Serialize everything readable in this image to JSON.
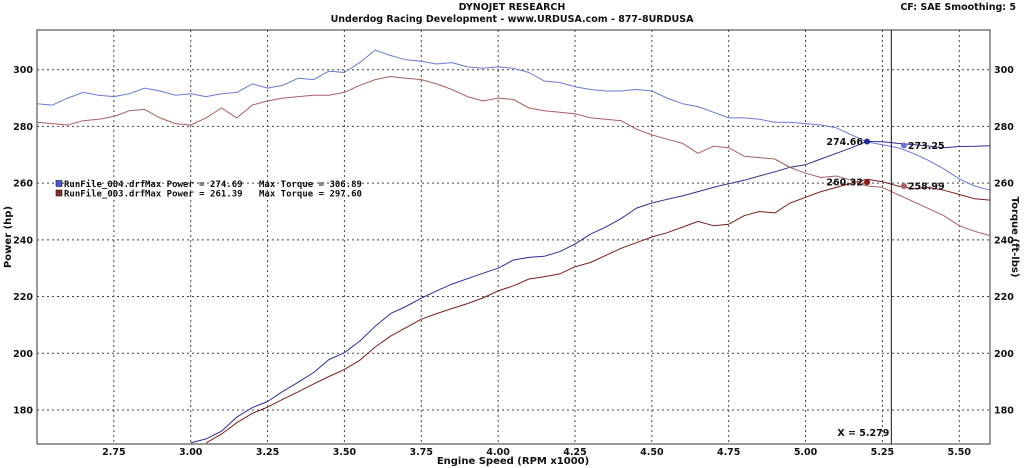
{
  "header": {
    "title": "DYNOJET RESEARCH",
    "subtitle": "Underdog Racing Development - www.URDUSA.com - 877-8URDUSA",
    "settings": "CF: SAE  Smoothing: 5"
  },
  "chart_data": {
    "type": "line",
    "xlabel": "Engine Speed (RPM x1000)",
    "ylabel": "Power (hp)",
    "y2label": "Torque (ft-lbs)",
    "xlim": [
      2.5,
      5.6
    ],
    "ylim": [
      168,
      314
    ],
    "x_ticks": [
      "2.75",
      "3.00",
      "3.25",
      "3.50",
      "3.75",
      "4.00",
      "4.25",
      "4.50",
      "4.75",
      "5.00",
      "5.25",
      "5.50"
    ],
    "y_ticks": [
      "180",
      "200",
      "220",
      "240",
      "260",
      "280",
      "300"
    ],
    "y2_ticks": [
      "180",
      "200",
      "220",
      "240",
      "260",
      "280",
      "300"
    ],
    "grid": true,
    "legend_position": "left-middle",
    "cursor_x": 5.279,
    "cursor_label": "X = 5.279",
    "legend": [
      {
        "file": "RunFile_004.drf",
        "max_power_label": "Max Power = 274.69",
        "max_torque_label": "Max Torque = 306.89",
        "color": "#4a55d8"
      },
      {
        "file": "RunFile_003.drf",
        "max_power_label": "Max Power = 261.39",
        "max_torque_label": "Max Torque = 297.60",
        "color": "#8b2a2a"
      }
    ],
    "series": [
      {
        "name": "RunFile_004.drf",
        "kind": "power",
        "color": "#2a2f96",
        "x": [
          3.0,
          3.05,
          3.1,
          3.15,
          3.2,
          3.25,
          3.3,
          3.35,
          3.4,
          3.45,
          3.5,
          3.55,
          3.6,
          3.65,
          3.7,
          3.75,
          3.8,
          3.85,
          3.9,
          3.95,
          4.0,
          4.05,
          4.1,
          4.15,
          4.2,
          4.25,
          4.3,
          4.35,
          4.4,
          4.45,
          4.5,
          4.55,
          4.6,
          4.65,
          4.7,
          4.75,
          4.8,
          4.85,
          4.9,
          4.95,
          5.0,
          5.05,
          5.1,
          5.15,
          5.2,
          5.25,
          5.3,
          5.35,
          5.4,
          5.45,
          5.5,
          5.55,
          5.6
        ],
        "values": [
          168.4,
          169.8,
          172.5,
          177.5,
          180.8,
          183.0,
          186.6,
          189.8,
          193.2,
          197.8,
          200.2,
          204.3,
          209.5,
          214.0,
          216.5,
          219.4,
          222.0,
          224.4,
          226.3,
          228.2,
          230.0,
          232.9,
          233.8,
          234.2,
          235.8,
          238.5,
          242.0,
          244.5,
          247.5,
          251.2,
          253.0,
          254.3,
          255.5,
          257.0,
          258.5,
          259.8,
          261.0,
          262.5,
          264.0,
          265.6,
          266.5,
          268.5,
          270.5,
          272.5,
          274.7,
          274.6,
          274.0,
          273.6,
          273.1,
          272.5,
          272.9,
          273.0,
          273.2
        ]
      },
      {
        "name": "RunFile_004.drf",
        "kind": "torque",
        "color": "#6b78d6",
        "x": [
          2.5,
          2.55,
          2.6,
          2.65,
          2.7,
          2.75,
          2.8,
          2.85,
          2.9,
          2.95,
          3.0,
          3.05,
          3.1,
          3.15,
          3.2,
          3.25,
          3.3,
          3.35,
          3.4,
          3.45,
          3.5,
          3.55,
          3.6,
          3.65,
          3.7,
          3.75,
          3.8,
          3.85,
          3.9,
          3.95,
          4.0,
          4.05,
          4.1,
          4.15,
          4.2,
          4.25,
          4.3,
          4.35,
          4.4,
          4.45,
          4.5,
          4.55,
          4.6,
          4.65,
          4.7,
          4.75,
          4.8,
          4.85,
          4.9,
          4.95,
          5.0,
          5.05,
          5.1,
          5.15,
          5.2,
          5.25,
          5.3,
          5.35,
          5.4,
          5.45,
          5.5,
          5.55,
          5.6
        ],
        "values": [
          288.0,
          287.5,
          290.0,
          292.0,
          291.0,
          290.5,
          291.5,
          293.5,
          292.5,
          291.0,
          291.5,
          290.5,
          291.5,
          292.0,
          295.0,
          293.5,
          294.5,
          297.0,
          296.5,
          299.5,
          299.0,
          302.5,
          306.9,
          305.0,
          303.5,
          303.0,
          302.0,
          302.5,
          301.0,
          300.5,
          301.0,
          300.5,
          299.0,
          296.0,
          295.5,
          294.0,
          293.0,
          292.5,
          292.5,
          293.0,
          292.5,
          290.0,
          288.0,
          287.0,
          285.0,
          283.0,
          283.0,
          282.5,
          281.5,
          281.5,
          281.0,
          280.5,
          279.5,
          277.0,
          274.5,
          273.5,
          272.5,
          270.5,
          268.0,
          265.0,
          261.5,
          259.0,
          257.5
        ]
      },
      {
        "name": "RunFile_003.drf",
        "kind": "power",
        "color": "#7a1e1e",
        "x": [
          3.05,
          3.1,
          3.15,
          3.2,
          3.25,
          3.3,
          3.35,
          3.4,
          3.45,
          3.5,
          3.55,
          3.6,
          3.65,
          3.7,
          3.75,
          3.8,
          3.85,
          3.9,
          3.95,
          4.0,
          4.05,
          4.1,
          4.15,
          4.2,
          4.25,
          4.3,
          4.35,
          4.4,
          4.45,
          4.5,
          4.55,
          4.6,
          4.65,
          4.7,
          4.75,
          4.8,
          4.85,
          4.9,
          4.95,
          5.0,
          5.05,
          5.1,
          5.15,
          5.2,
          5.25,
          5.3,
          5.35,
          5.4,
          5.45,
          5.5,
          5.55,
          5.6
        ],
        "values": [
          168.4,
          171.5,
          175.5,
          178.8,
          181.0,
          183.8,
          186.4,
          189.2,
          191.8,
          194.3,
          197.5,
          202.2,
          206.0,
          209.0,
          212.0,
          214.0,
          215.8,
          217.5,
          219.5,
          222.0,
          223.8,
          226.2,
          227.0,
          228.0,
          230.5,
          232.0,
          234.5,
          237.0,
          239.0,
          241.0,
          242.5,
          244.5,
          246.5,
          245.0,
          245.5,
          248.5,
          250.0,
          249.5,
          253.0,
          255.0,
          257.0,
          258.5,
          260.0,
          261.4,
          260.5,
          259.0,
          258.0,
          258.5,
          257.5,
          256.0,
          254.5,
          254.0
        ]
      },
      {
        "name": "RunFile_003.drf",
        "kind": "torque",
        "color": "#a86060",
        "x": [
          2.5,
          2.55,
          2.6,
          2.65,
          2.7,
          2.75,
          2.8,
          2.85,
          2.9,
          2.95,
          3.0,
          3.05,
          3.1,
          3.15,
          3.2,
          3.25,
          3.3,
          3.35,
          3.4,
          3.45,
          3.5,
          3.55,
          3.6,
          3.65,
          3.7,
          3.75,
          3.8,
          3.85,
          3.9,
          3.95,
          4.0,
          4.05,
          4.1,
          4.15,
          4.2,
          4.25,
          4.3,
          4.35,
          4.4,
          4.45,
          4.5,
          4.55,
          4.6,
          4.65,
          4.7,
          4.75,
          4.8,
          4.85,
          4.9,
          4.95,
          5.0,
          5.05,
          5.1,
          5.15,
          5.2,
          5.25,
          5.3,
          5.35,
          5.4,
          5.45,
          5.5,
          5.55,
          5.6
        ],
        "values": [
          281.5,
          281.0,
          280.5,
          282.0,
          282.5,
          283.5,
          285.5,
          286.0,
          283.0,
          281.0,
          280.5,
          283.0,
          286.5,
          283.0,
          287.5,
          289.0,
          290.0,
          290.5,
          291.0,
          291.0,
          292.0,
          294.5,
          296.5,
          297.6,
          297.0,
          296.5,
          295.0,
          293.0,
          290.5,
          289.0,
          290.0,
          289.5,
          286.5,
          285.5,
          285.0,
          284.5,
          283.0,
          282.5,
          282.0,
          279.0,
          277.0,
          275.5,
          274.0,
          270.5,
          273.0,
          272.5,
          269.5,
          269.0,
          268.5,
          265.5,
          263.5,
          262.0,
          262.5,
          261.0,
          259.0,
          258.5,
          256.0,
          253.5,
          251.0,
          248.5,
          245.0,
          243.0,
          241.5
        ]
      }
    ],
    "markers": [
      {
        "x": 5.2,
        "y": 274.66,
        "label": "274.66",
        "label_side": "left",
        "color": "#1f2a9a"
      },
      {
        "x": 5.32,
        "y": 273.25,
        "label": "273.25",
        "label_side": "right",
        "color": "#6b78d6"
      },
      {
        "x": 5.2,
        "y": 260.32,
        "label": "260.32",
        "label_side": "left",
        "color": "#8b1a1a"
      },
      {
        "x": 5.32,
        "y": 258.99,
        "label": "258.99",
        "label_side": "right",
        "color": "#a86060"
      }
    ]
  }
}
